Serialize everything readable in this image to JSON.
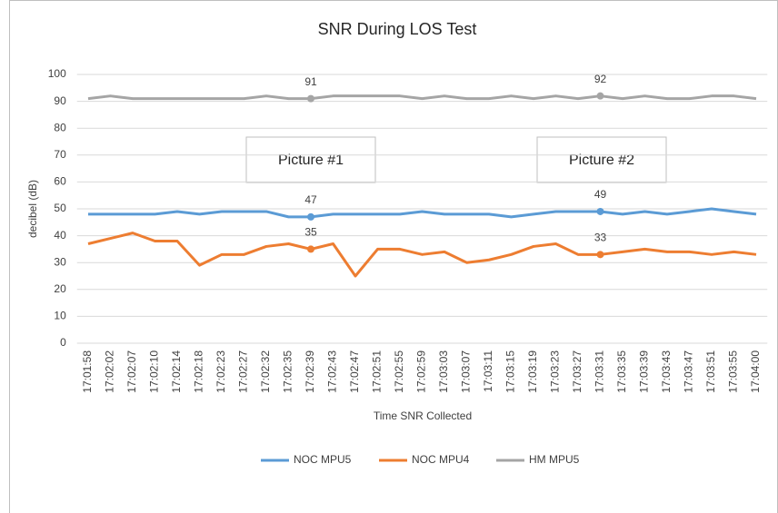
{
  "chart_data": {
    "type": "line",
    "title": "SNR During LOS Test",
    "x_label": "Time SNR Collected",
    "y_label": "decibel (dB)",
    "categories": [
      "17:01:58",
      "17:02:02",
      "17:02:07",
      "17:02:10",
      "17:02:14",
      "17:02:18",
      "17:02:23",
      "17:02:27",
      "17:02:32",
      "17:02:35",
      "17:02:39",
      "17:02:43",
      "17:02:47",
      "17:02:51",
      "17:02:55",
      "17:02:59",
      "17:03:03",
      "17:03:07",
      "17:03:11",
      "17:03:15",
      "17:03:19",
      "17:03:23",
      "17:03:27",
      "17:03:31",
      "17:03:35",
      "17:03:39",
      "17:03:43",
      "17:03:47",
      "17:03:51",
      "17:03:55",
      "17:04:00"
    ],
    "series": [
      {
        "name": "NOC MPU5",
        "color": "#5b9bd5",
        "values": [
          48,
          48,
          48,
          48,
          49,
          48,
          49,
          49,
          49,
          47,
          47,
          48,
          48,
          48,
          48,
          49,
          48,
          48,
          48,
          47,
          48,
          49,
          49,
          49,
          48,
          49,
          48,
          49,
          50,
          49,
          48
        ],
        "value_labels": [
          null,
          null,
          null,
          null,
          null,
          null,
          null,
          null,
          null,
          null,
          "47",
          null,
          null,
          null,
          null,
          null,
          null,
          null,
          null,
          null,
          null,
          null,
          null,
          "49",
          null,
          null,
          null,
          null,
          null,
          null,
          null
        ]
      },
      {
        "name": "NOC MPU4",
        "color": "#ed7d31",
        "values": [
          37,
          39,
          41,
          38,
          38,
          29,
          33,
          33,
          36,
          37,
          35,
          37,
          25,
          35,
          35,
          33,
          34,
          30,
          31,
          33,
          36,
          37,
          33,
          33,
          34,
          35,
          34,
          34,
          33,
          34,
          33
        ],
        "value_labels": [
          null,
          null,
          null,
          null,
          null,
          null,
          null,
          null,
          null,
          null,
          "35",
          null,
          null,
          null,
          null,
          null,
          null,
          null,
          null,
          null,
          null,
          null,
          null,
          "33",
          null,
          null,
          null,
          null,
          null,
          null,
          null
        ]
      },
      {
        "name": "HM MPU5",
        "color": "#a5a5a5",
        "values": [
          91,
          92,
          91,
          91,
          91,
          91,
          91,
          91,
          92,
          91,
          91,
          92,
          92,
          92,
          92,
          91,
          92,
          91,
          91,
          92,
          91,
          92,
          91,
          92,
          91,
          92,
          91,
          91,
          92,
          92,
          91
        ],
        "value_labels": [
          null,
          null,
          null,
          null,
          null,
          null,
          null,
          null,
          null,
          null,
          "91",
          null,
          null,
          null,
          null,
          null,
          null,
          null,
          null,
          null,
          null,
          null,
          null,
          "92",
          null,
          null,
          null,
          null,
          null,
          null,
          null
        ]
      }
    ],
    "annotations": [
      "Picture #1",
      "Picture #2"
    ],
    "ylim": [
      0,
      100
    ],
    "yticks": [
      0,
      10,
      20,
      30,
      40,
      50,
      60,
      70,
      80,
      90,
      100
    ],
    "grid": true,
    "legend": "bottom"
  }
}
